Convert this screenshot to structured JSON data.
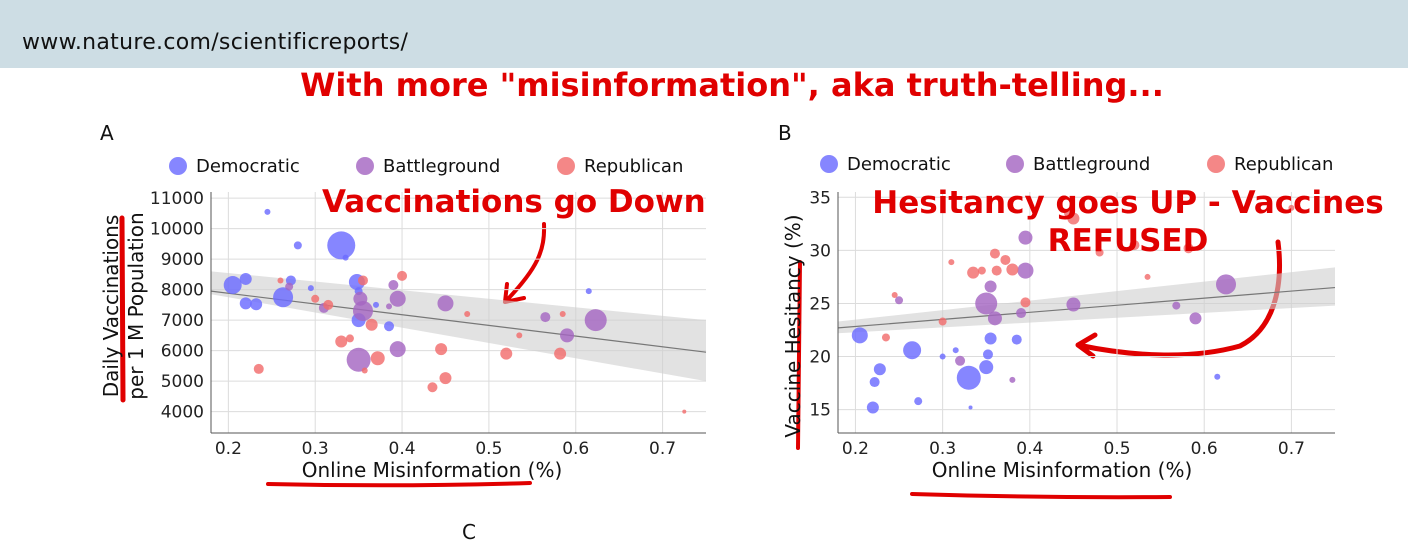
{
  "browser": {
    "url": "www.nature.com/scientificreports/"
  },
  "headline": "With more \"misinformation\", aka truth-telling...",
  "panel_c_letter": "C",
  "colors": {
    "Democratic": "#6b6bff",
    "Battleground": "#a567c2",
    "Republican": "#f26d6d",
    "annotation": "#e00000"
  },
  "chart_data": [
    {
      "panel": "A",
      "type": "scatter",
      "annotation": "Vaccinations go Down",
      "xlabel": "Online Misinformation (%)",
      "ylabel": [
        "Daily Vaccinations",
        "per 1 M Population"
      ],
      "xlim": [
        0.18,
        0.75
      ],
      "ylim": [
        3300,
        11200
      ],
      "xticks": [
        0.2,
        0.3,
        0.4,
        0.5,
        0.6,
        0.7
      ],
      "xtick_labels": [
        "0.2",
        "0.3",
        "0.4",
        "0.5",
        "0.6",
        "0.7"
      ],
      "yticks": [
        4000,
        5000,
        6000,
        7000,
        8000,
        9000,
        10000,
        11000
      ],
      "ytick_labels": [
        "4000",
        "5000",
        "6000",
        "7000",
        "8000",
        "9000",
        "10000",
        "11000"
      ],
      "grid": true,
      "legend": {
        "entries": [
          "Democratic",
          "Battleground",
          "Republican"
        ],
        "placement": "top"
      },
      "trend": {
        "y_at_xmin": 7950,
        "y_at_xmax": 5950,
        "band_low": [
          7850,
          5000
        ],
        "band_high": [
          8600,
          7000
        ]
      },
      "series": [
        {
          "name": "Democratic",
          "points": [
            [
              0.205,
              8150,
              9
            ],
            [
              0.22,
              8350,
              6
            ],
            [
              0.22,
              7550,
              6
            ],
            [
              0.232,
              7520,
              6
            ],
            [
              0.245,
              10550,
              3
            ],
            [
              0.263,
              7750,
              10
            ],
            [
              0.272,
              8300,
              5
            ],
            [
              0.28,
              9450,
              4
            ],
            [
              0.295,
              8050,
              3
            ],
            [
              0.33,
              9450,
              14
            ],
            [
              0.335,
              9050,
              3
            ],
            [
              0.348,
              8250,
              8
            ],
            [
              0.35,
              7950,
              4
            ],
            [
              0.35,
              7000,
              7
            ],
            [
              0.37,
              7500,
              3
            ],
            [
              0.385,
              6800,
              5
            ],
            [
              0.615,
              7950,
              3
            ]
          ]
        },
        {
          "name": "Battleground",
          "points": [
            [
              0.27,
              8100,
              4
            ],
            [
              0.31,
              7400,
              5
            ],
            [
              0.352,
              7700,
              7
            ],
            [
              0.355,
              7300,
              10
            ],
            [
              0.35,
              5700,
              12
            ],
            [
              0.385,
              7450,
              3
            ],
            [
              0.39,
              8150,
              5
            ],
            [
              0.395,
              7700,
              8
            ],
            [
              0.395,
              6050,
              8
            ],
            [
              0.45,
              7550,
              8
            ],
            [
              0.565,
              7100,
              5
            ],
            [
              0.59,
              6500,
              7
            ],
            [
              0.623,
              7000,
              11
            ]
          ]
        },
        {
          "name": "Republican",
          "points": [
            [
              0.235,
              5400,
              5
            ],
            [
              0.26,
              8300,
              3
            ],
            [
              0.3,
              7700,
              4
            ],
            [
              0.315,
              7500,
              5
            ],
            [
              0.33,
              6300,
              6
            ],
            [
              0.34,
              6400,
              4
            ],
            [
              0.355,
              8300,
              5
            ],
            [
              0.357,
              5350,
              3
            ],
            [
              0.365,
              6850,
              6
            ],
            [
              0.372,
              5750,
              7
            ],
            [
              0.4,
              8450,
              5
            ],
            [
              0.435,
              4800,
              5
            ],
            [
              0.445,
              6050,
              6
            ],
            [
              0.45,
              5100,
              6
            ],
            [
              0.475,
              7200,
              3
            ],
            [
              0.52,
              5900,
              6
            ],
            [
              0.535,
              6500,
              3
            ],
            [
              0.582,
              5900,
              6
            ],
            [
              0.585,
              7200,
              3
            ],
            [
              0.725,
              4000,
              2
            ]
          ]
        }
      ]
    },
    {
      "panel": "B",
      "type": "scatter",
      "annotation": [
        "Hesitancy goes UP - Vaccines",
        "REFUSED"
      ],
      "xlabel": "Online Misinformation (%)",
      "ylabel": "Vaccine Hesitancy (%)",
      "xlim": [
        0.18,
        0.75
      ],
      "ylim": [
        12.8,
        35.5
      ],
      "xticks": [
        0.2,
        0.3,
        0.4,
        0.5,
        0.6,
        0.7
      ],
      "xtick_labels": [
        "0.2",
        "0.3",
        "0.4",
        "0.5",
        "0.6",
        "0.7"
      ],
      "yticks": [
        15,
        20,
        25,
        30,
        35
      ],
      "ytick_labels": [
        "15",
        "20",
        "25",
        "30",
        "35"
      ],
      "grid": true,
      "legend": {
        "entries": [
          "Democratic",
          "Battleground",
          "Republican"
        ],
        "placement": "top"
      },
      "trend": {
        "y_at_xmin": 22.7,
        "y_at_xmax": 26.5,
        "band_low": [
          22.2,
          24.8
        ],
        "band_high": [
          23.3,
          28.4
        ]
      },
      "series": [
        {
          "name": "Democratic",
          "points": [
            [
              0.205,
              22.0,
              8
            ],
            [
              0.22,
              15.2,
              6
            ],
            [
              0.222,
              17.6,
              5
            ],
            [
              0.228,
              18.8,
              6
            ],
            [
              0.265,
              20.6,
              9
            ],
            [
              0.272,
              15.8,
              4
            ],
            [
              0.3,
              20.0,
              3
            ],
            [
              0.315,
              20.6,
              3
            ],
            [
              0.33,
              18.0,
              12
            ],
            [
              0.332,
              15.2,
              2
            ],
            [
              0.35,
              19.0,
              7
            ],
            [
              0.352,
              20.2,
              5
            ],
            [
              0.355,
              21.7,
              6
            ],
            [
              0.385,
              21.6,
              5
            ],
            [
              0.615,
              18.1,
              3
            ]
          ]
        },
        {
          "name": "Battleground",
          "points": [
            [
              0.25,
              25.3,
              4
            ],
            [
              0.32,
              19.6,
              5
            ],
            [
              0.35,
              25.0,
              11
            ],
            [
              0.355,
              26.6,
              6
            ],
            [
              0.36,
              23.6,
              7
            ],
            [
              0.38,
              17.8,
              3
            ],
            [
              0.39,
              24.1,
              5
            ],
            [
              0.395,
              31.2,
              7
            ],
            [
              0.395,
              28.1,
              8
            ],
            [
              0.45,
              24.9,
              7
            ],
            [
              0.568,
              24.8,
              4
            ],
            [
              0.59,
              23.6,
              6
            ],
            [
              0.625,
              26.8,
              10
            ]
          ]
        },
        {
          "name": "Republican",
          "points": [
            [
              0.235,
              21.8,
              4
            ],
            [
              0.245,
              25.8,
              3
            ],
            [
              0.3,
              23.3,
              4
            ],
            [
              0.31,
              28.9,
              3
            ],
            [
              0.335,
              27.9,
              6
            ],
            [
              0.345,
              28.1,
              4
            ],
            [
              0.36,
              29.7,
              5
            ],
            [
              0.362,
              28.1,
              5
            ],
            [
              0.372,
              29.1,
              5
            ],
            [
              0.38,
              28.2,
              6
            ],
            [
              0.395,
              25.1,
              5
            ],
            [
              0.445,
              33.5,
              5
            ],
            [
              0.45,
              33.0,
              6
            ],
            [
              0.48,
              29.8,
              4
            ],
            [
              0.52,
              30.5,
              5
            ],
            [
              0.535,
              27.5,
              3
            ],
            [
              0.582,
              30.2,
              5
            ],
            [
              0.7,
              34.0,
              3
            ]
          ]
        }
      ]
    }
  ]
}
